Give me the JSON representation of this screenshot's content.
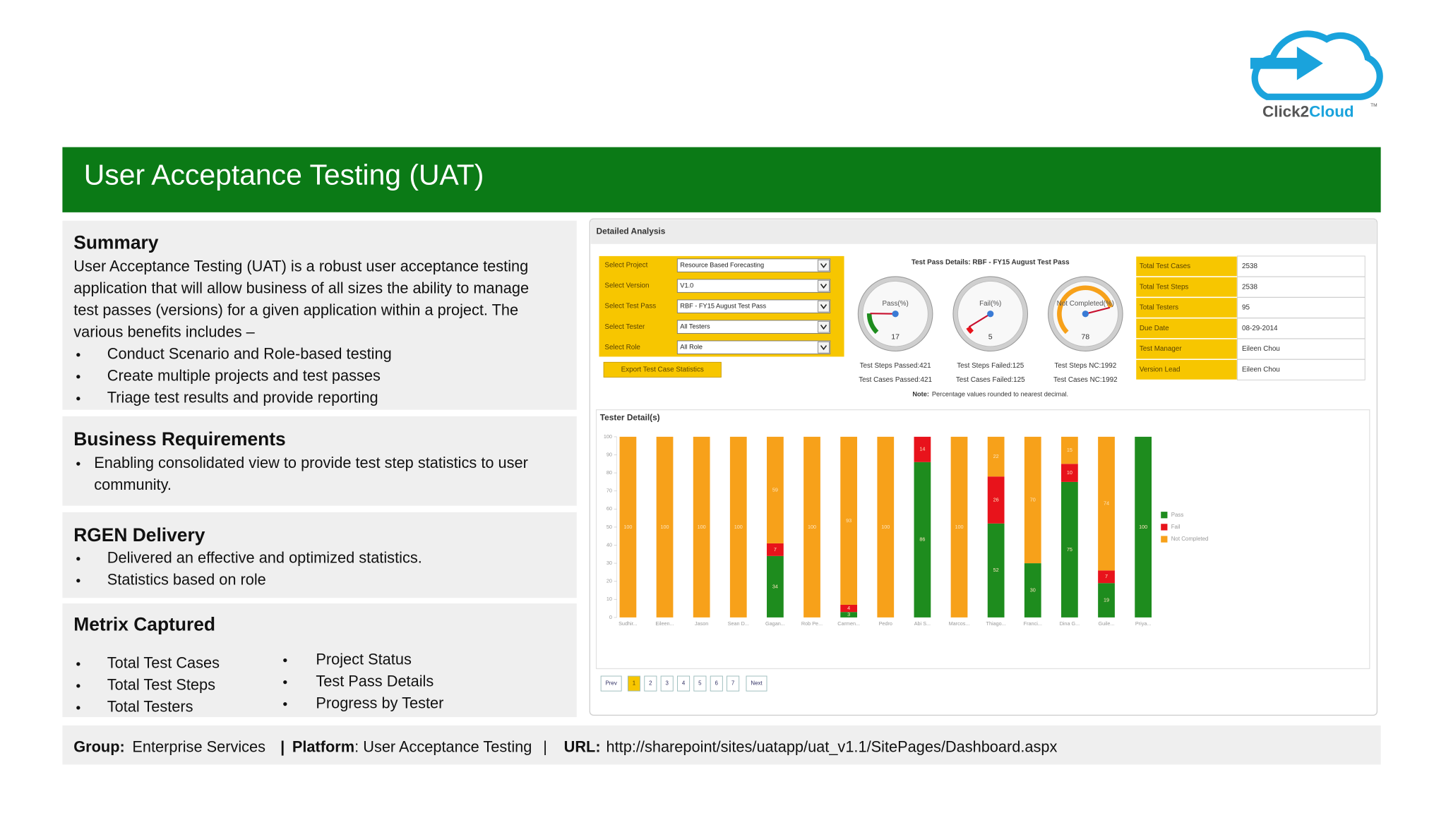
{
  "logo": {
    "brand_a": "Click2",
    "brand_b": "Cloud",
    "trademark": "TM"
  },
  "header": {
    "title": "User Acceptance Testing (UAT)"
  },
  "summary": {
    "heading": "Summary",
    "lines": [
      "User Acceptance Testing (UAT) is a robust user acceptance testing",
      "application that will allow business of all sizes the ability to manage",
      "test passes (versions) for a given application within a project. The",
      "various benefits includes –"
    ],
    "bullets": [
      "Conduct Scenario and Role-based testing",
      "Create multiple projects and test passes",
      "Triage test results and provide reporting"
    ]
  },
  "business_requirements": {
    "heading": "Business Requirements",
    "bullet_lines": [
      "Enabling consolidated view to provide test step statistics to user",
      "community."
    ]
  },
  "rgen_delivery": {
    "heading": "RGEN Delivery",
    "bullets": [
      "Delivered an effective and optimized statistics.",
      "Statistics based on role"
    ]
  },
  "metrix_captured": {
    "heading": "Metrix Captured",
    "columns": [
      [
        "Total Test Cases",
        "Total Test Steps",
        "Total Testers"
      ],
      [
        "Project Status",
        "Test Pass Details",
        "Progress by Tester"
      ]
    ]
  },
  "footer": {
    "group_label": "Group:",
    "group": "Enterprise Services",
    "separator": "|",
    "platform_label": "Platform",
    "platform": ": User Acceptance Testing",
    "url_label": "URL:",
    "url": "http://sharepoint/sites/uatapp/uat_v1.1/SitePages/Dashboard.aspx"
  },
  "dashboard": {
    "title": "Detailed Analysis",
    "filters": [
      {
        "label": "Select Project",
        "value": "Resource Based Forecasting"
      },
      {
        "label": "Select Version",
        "value": "V1.0"
      },
      {
        "label": "Select Test Pass",
        "value": "RBF - FY15 August Test Pass"
      },
      {
        "label": "Select Tester",
        "value": "All Testers"
      },
      {
        "label": "Select Role",
        "value": "All Role"
      }
    ],
    "export_button": "Export Test Case Statistics",
    "pass_details_title": "Test Pass Details: RBF - FY15 August Test Pass",
    "note_label": "Note:",
    "note": "Percentage values rounded to nearest decimal.",
    "info": [
      {
        "label": "Total Test Cases",
        "value": 2538
      },
      {
        "label": "Total Test Steps",
        "value": 2538
      },
      {
        "label": "Total Testers",
        "value": 95
      },
      {
        "label": "Due Date",
        "value": "08-29-2014"
      },
      {
        "label": "Test Manager",
        "value": "Eileen Chou"
      },
      {
        "label": "Version Lead",
        "value": "Eileen Chou"
      }
    ],
    "tester_details_title": "Tester Detail(s)",
    "pagination": [
      "Prev",
      "1",
      "2",
      "3",
      "4",
      "5",
      "6",
      "7",
      "Next"
    ]
  },
  "chart_data": [
    {
      "type": "gauge",
      "title": "Pass(%)",
      "value": 17,
      "lim": [
        0,
        100
      ],
      "color": "#1e8c1e",
      "captions": [
        "Test Steps Passed:421",
        "Test Cases Passed:421"
      ]
    },
    {
      "type": "gauge",
      "title": "Fail(%)",
      "value": 5,
      "lim": [
        0,
        100
      ],
      "color": "#e8131b",
      "captions": [
        "Test Steps Failed:125",
        "Test Cases Failed:125"
      ]
    },
    {
      "type": "gauge",
      "title": "Not Completed(%)",
      "value": 78,
      "lim": [
        0,
        100
      ],
      "color": "#f7a11a",
      "captions": [
        "Test Steps NC:1992",
        "Test Cases NC:1992"
      ]
    },
    {
      "type": "bar",
      "stacked": true,
      "categories": [
        "Sudhir...",
        "Eileen...",
        "Jason",
        "Sean D...",
        "Gagan...",
        "Rob Pe...",
        "Carmen...",
        "Pedro",
        "Abi S...",
        "Marcos...",
        "Thiago...",
        "Franci...",
        "Dina G...",
        "Guile...",
        "Priya..."
      ],
      "series": [
        {
          "name": "Pass",
          "color": "#1e8c1e",
          "values": [
            0,
            0,
            0,
            0,
            34,
            0,
            3,
            0,
            86,
            0,
            52,
            30,
            75,
            19,
            100
          ]
        },
        {
          "name": "Fail",
          "color": "#e8131b",
          "values": [
            0,
            0,
            0,
            0,
            7,
            0,
            4,
            0,
            14,
            0,
            26,
            0,
            10,
            7,
            0
          ]
        },
        {
          "name": "Not Completed",
          "color": "#f7a11a",
          "values": [
            100,
            100,
            100,
            100,
            59,
            100,
            93,
            100,
            0,
            100,
            22,
            70,
            15,
            74,
            0
          ]
        }
      ],
      "ylim": [
        0,
        100
      ],
      "yticks": [
        0,
        10,
        20,
        30,
        40,
        50,
        60,
        70,
        80,
        90,
        100
      ],
      "legend": "right"
    }
  ]
}
